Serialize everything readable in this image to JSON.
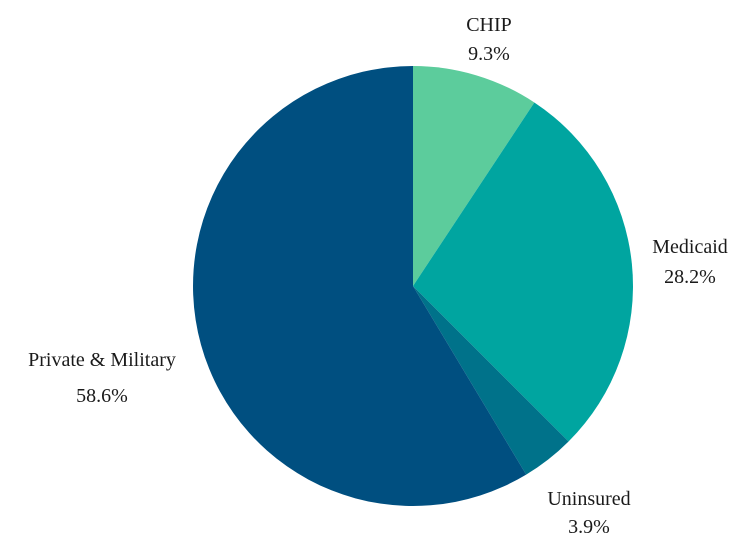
{
  "chart_data": {
    "type": "pie",
    "start_angle_deg": 0,
    "direction": "clockwise",
    "slices": [
      {
        "label": "CHIP",
        "value": 9.3,
        "value_label": "9.3%",
        "color": "#5ccc9c"
      },
      {
        "label": "Medicaid",
        "value": 28.2,
        "value_label": "28.2%",
        "color": "#00a5a0"
      },
      {
        "label": "Uninsured",
        "value": 3.9,
        "value_label": "3.9%",
        "color": "#00728a"
      },
      {
        "label": "Private & Military",
        "value": 58.6,
        "value_label": "58.6%",
        "color": "#004f80"
      }
    ]
  }
}
